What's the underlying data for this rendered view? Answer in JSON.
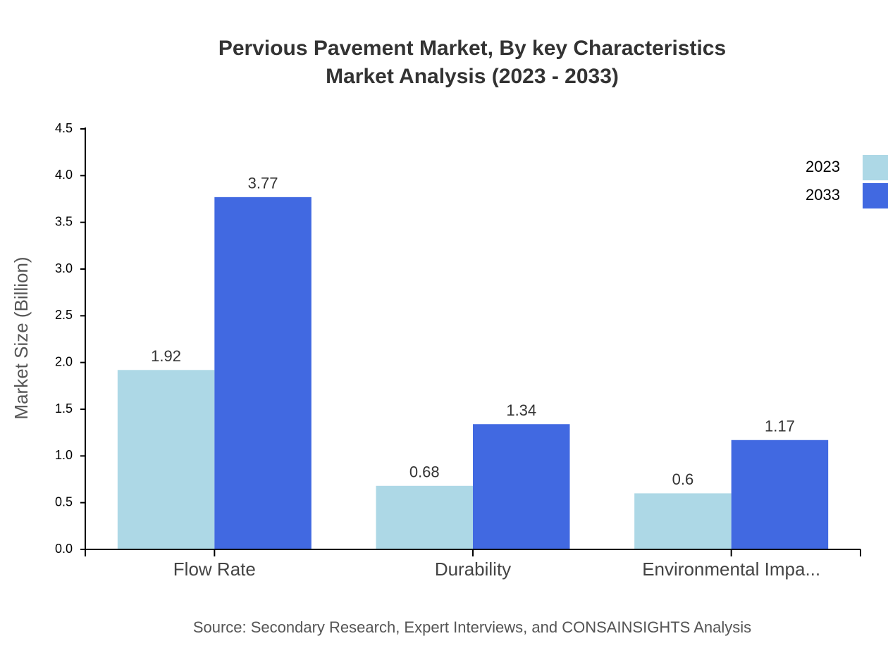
{
  "chart_data": {
    "type": "bar",
    "title": "Pervious Pavement Market, By key Characteristics",
    "subtitle": "Market Analysis (2023 - 2033)",
    "y_label": "Market Size (Billion)",
    "source": "Source: Secondary Research, Expert Interviews, and CONSAINSIGHTS Analysis",
    "categories": [
      "Flow Rate",
      "Durability",
      "Environmental Impa..."
    ],
    "series": [
      {
        "name": "2023",
        "color": "#add8e6",
        "values": [
          1.92,
          0.68,
          0.6
        ]
      },
      {
        "name": "2033",
        "color": "#4169e1",
        "values": [
          3.77,
          1.34,
          1.17
        ]
      }
    ],
    "ylim": [
      0,
      4.5
    ],
    "yticks": [
      {
        "value": 0,
        "label": "0.0"
      },
      0.5,
      {
        "value": 1,
        "label": "1.0"
      },
      1.5,
      {
        "value": 2,
        "label": "2.0"
      },
      2.5,
      {
        "value": 3,
        "label": "3.0"
      },
      3.5,
      {
        "value": 4,
        "label": "4.0"
      },
      4.5
    ],
    "grid": false,
    "legend": "top-right"
  }
}
